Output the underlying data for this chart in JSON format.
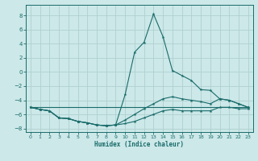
{
  "xlabel": "Humidex (Indice chaleur)",
  "xlim": [
    -0.5,
    23.5
  ],
  "ylim": [
    -8.5,
    9.5
  ],
  "yticks": [
    -8,
    -6,
    -4,
    -2,
    0,
    2,
    4,
    6,
    8
  ],
  "xticks": [
    0,
    1,
    2,
    3,
    4,
    5,
    6,
    7,
    8,
    9,
    10,
    11,
    12,
    13,
    14,
    15,
    16,
    17,
    18,
    19,
    20,
    21,
    22,
    23
  ],
  "background_color": "#cce8e8",
  "grid_color": "#b0d0d0",
  "line_color": "#1a6b6b",
  "line1_x": [
    0,
    1,
    2,
    3,
    4,
    5,
    6,
    7,
    8,
    9,
    10,
    11,
    12,
    13,
    14,
    15,
    16,
    17,
    18,
    19,
    20,
    21,
    22,
    23
  ],
  "line1_y": [
    -5.0,
    -5.3,
    -5.5,
    -6.5,
    -6.6,
    -7.0,
    -7.2,
    -7.5,
    -7.6,
    -7.5,
    -3.2,
    2.8,
    4.2,
    8.2,
    5.0,
    0.2,
    -0.5,
    -1.2,
    -2.5,
    -2.6,
    -3.8,
    -4.0,
    -4.5,
    -5.0
  ],
  "line2_x": [
    0,
    1,
    2,
    3,
    4,
    5,
    6,
    7,
    8,
    9,
    10,
    11,
    12,
    13,
    14,
    15,
    16,
    17,
    18,
    19,
    20,
    21,
    22,
    23
  ],
  "line2_y": [
    -5.0,
    -5.3,
    -5.5,
    -6.5,
    -6.6,
    -7.0,
    -7.2,
    -7.5,
    -7.6,
    -7.5,
    -6.8,
    -6.0,
    -5.2,
    -4.5,
    -3.8,
    -3.5,
    -3.8,
    -4.0,
    -4.2,
    -4.5,
    -3.8,
    -4.0,
    -4.5,
    -5.0
  ],
  "line3_x": [
    0,
    23
  ],
  "line3_y": [
    -5.0,
    -5.0
  ],
  "line4_x": [
    0,
    1,
    2,
    3,
    4,
    5,
    6,
    7,
    8,
    9,
    10,
    11,
    12,
    13,
    14,
    15,
    16,
    17,
    18,
    19,
    20,
    21,
    22,
    23
  ],
  "line4_y": [
    -5.0,
    -5.3,
    -5.5,
    -6.5,
    -6.6,
    -7.0,
    -7.2,
    -7.5,
    -7.6,
    -7.5,
    -7.3,
    -7.0,
    -6.5,
    -6.0,
    -5.5,
    -5.3,
    -5.5,
    -5.5,
    -5.5,
    -5.5,
    -5.0,
    -5.0,
    -5.2,
    -5.2
  ]
}
